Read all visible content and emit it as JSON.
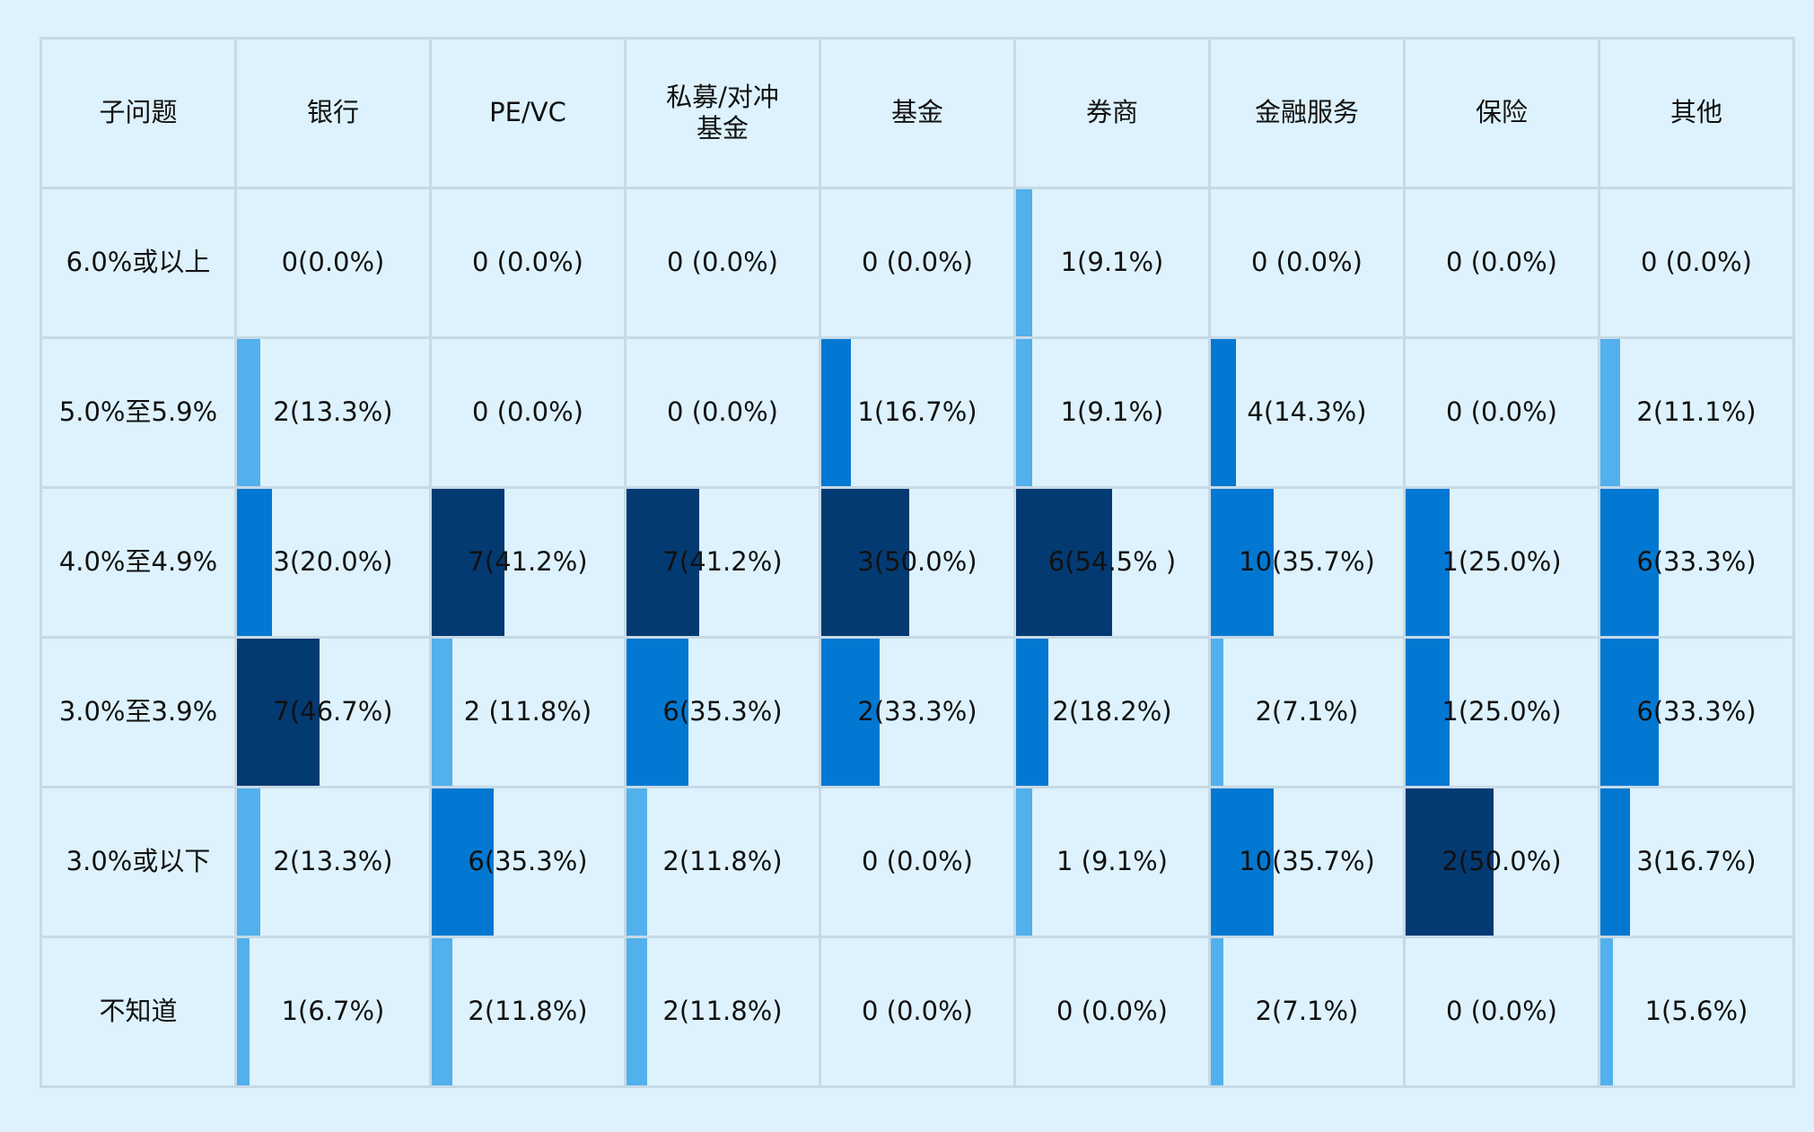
{
  "chart_data": {
    "type": "table",
    "headers": [
      "子问题",
      "银行",
      "PE/VC",
      "私募/对冲\n基金",
      "基金",
      "券商",
      "金融服务",
      "保险",
      "其他"
    ],
    "rows": [
      {
        "label": "6.0%或以上",
        "cells": [
          {
            "text": "0(0.0%)",
            "pct": 0.0
          },
          {
            "text": "0 (0.0%)",
            "pct": 0.0
          },
          {
            "text": "0 (0.0%)",
            "pct": 0.0
          },
          {
            "text": "0 (0.0%)",
            "pct": 0.0
          },
          {
            "text": "1(9.1%)",
            "pct": 9.1
          },
          {
            "text": "0 (0.0%)",
            "pct": 0.0
          },
          {
            "text": "0 (0.0%)",
            "pct": 0.0
          },
          {
            "text": "0 (0.0%)",
            "pct": 0.0
          }
        ]
      },
      {
        "label": "5.0%至5.9%",
        "cells": [
          {
            "text": "2(13.3%)",
            "pct": 13.3
          },
          {
            "text": "0 (0.0%)",
            "pct": 0.0
          },
          {
            "text": "0 (0.0%)",
            "pct": 0.0
          },
          {
            "text": "1(16.7%)",
            "pct": 16.7
          },
          {
            "text": "1(9.1%)",
            "pct": 9.1
          },
          {
            "text": "4(14.3%)",
            "pct": 14.3
          },
          {
            "text": "0 (0.0%)",
            "pct": 0.0
          },
          {
            "text": "2(11.1%)",
            "pct": 11.1
          }
        ]
      },
      {
        "label": "4.0%至4.9%",
        "cells": [
          {
            "text": "3(20.0%)",
            "pct": 20.0
          },
          {
            "text": "7(41.2%)",
            "pct": 41.2
          },
          {
            "text": "7(41.2%)",
            "pct": 41.2
          },
          {
            "text": "3(50.0%)",
            "pct": 50.0
          },
          {
            "text": "6(54.5% )",
            "pct": 54.5
          },
          {
            "text": "10(35.7%)",
            "pct": 35.7
          },
          {
            "text": "1(25.0%)",
            "pct": 25.0
          },
          {
            "text": "6(33.3%)",
            "pct": 33.3
          }
        ]
      },
      {
        "label": "3.0%至3.9%",
        "cells": [
          {
            "text": "7(46.7%)",
            "pct": 46.7
          },
          {
            "text": "2 (11.8%)",
            "pct": 11.8
          },
          {
            "text": "6(35.3%)",
            "pct": 35.3
          },
          {
            "text": "2(33.3%)",
            "pct": 33.3
          },
          {
            "text": "2(18.2%)",
            "pct": 18.2
          },
          {
            "text": "2(7.1%)",
            "pct": 7.1
          },
          {
            "text": "1(25.0%)",
            "pct": 25.0
          },
          {
            "text": "6(33.3%)",
            "pct": 33.3
          }
        ]
      },
      {
        "label": "3.0%或以下",
        "cells": [
          {
            "text": "2(13.3%)",
            "pct": 13.3
          },
          {
            "text": "6(35.3%)",
            "pct": 35.3
          },
          {
            "text": "2(11.8%)",
            "pct": 11.8
          },
          {
            "text": "0 (0.0%)",
            "pct": 0.0
          },
          {
            "text": "1 (9.1%)",
            "pct": 9.1
          },
          {
            "text": "10(35.7%)",
            "pct": 35.7
          },
          {
            "text": "2(50.0%)",
            "pct": 50.0
          },
          {
            "text": "3(16.7%)",
            "pct": 16.7
          }
        ]
      },
      {
        "label": "不知道",
        "cells": [
          {
            "text": "1(6.7%)",
            "pct": 6.7
          },
          {
            "text": "2(11.8%)",
            "pct": 11.8
          },
          {
            "text": "2(11.8%)",
            "pct": 11.8
          },
          {
            "text": "0 (0.0%)",
            "pct": 0.0
          },
          {
            "text": "0 (0.0%)",
            "pct": 0.0
          },
          {
            "text": "2(7.1%)",
            "pct": 7.1
          },
          {
            "text": "0 (0.0%)",
            "pct": 0.0
          },
          {
            "text": "1(5.6%)",
            "pct": 5.6
          }
        ]
      }
    ],
    "bar_scale_max_pct": 54.5,
    "bar_colors": {
      "very_light": "#89c8f5",
      "light": "#52b0ec",
      "medium": "#0378d2",
      "dark": "#043a72"
    }
  }
}
